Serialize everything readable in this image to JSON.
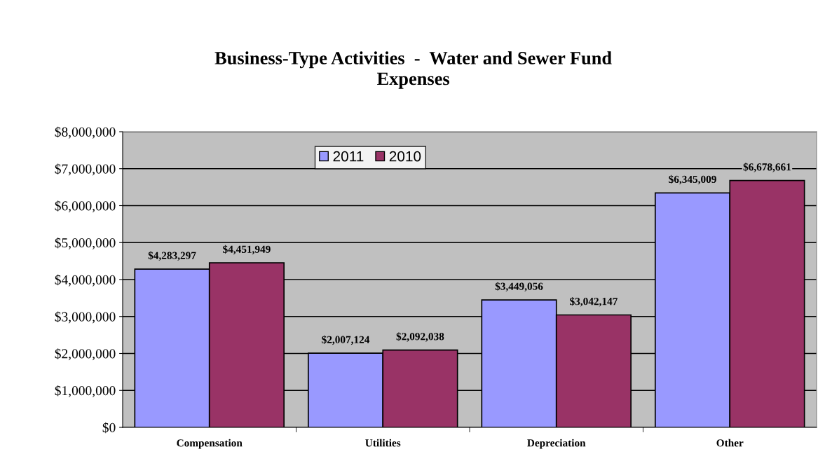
{
  "chart_data": {
    "type": "bar",
    "title": "Business-Type Activities  -  Water and Sewer Fund\nExpenses",
    "categories": [
      "Compensation",
      "Utilities",
      "Depreciation",
      "Other"
    ],
    "series": [
      {
        "name": "2011",
        "color": "#9999ff",
        "values": [
          4283297,
          2007124,
          3449056,
          6345009
        ],
        "value_labels": [
          "$4,283,297",
          "$2,007,124",
          "$3,449,056",
          "$6,345,009"
        ]
      },
      {
        "name": "2010",
        "color": "#993366",
        "values": [
          4451949,
          2092038,
          3042147,
          6678661
        ],
        "value_labels": [
          "$4,451,949",
          "$2,092,038",
          "$3,042,147",
          "$6,678,661"
        ]
      }
    ],
    "ylim": [
      0,
      8000000
    ],
    "yticks": [
      {
        "value": 0,
        "label": "$0"
      },
      {
        "value": 1000000,
        "label": "$1,000,000"
      },
      {
        "value": 2000000,
        "label": "$2,000,000"
      },
      {
        "value": 3000000,
        "label": "$3,000,000"
      },
      {
        "value": 4000000,
        "label": "$4,000,000"
      },
      {
        "value": 5000000,
        "label": "$5,000,000"
      },
      {
        "value": 6000000,
        "label": "$6,000,000"
      },
      {
        "value": 7000000,
        "label": "$7,000,000"
      },
      {
        "value": 8000000,
        "label": "$8,000,000"
      }
    ],
    "grid": "y",
    "legend": "top"
  }
}
